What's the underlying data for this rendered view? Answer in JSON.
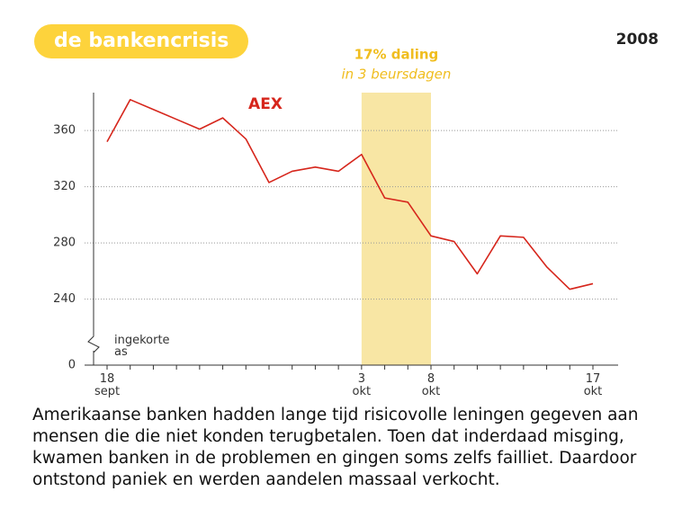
{
  "chart_data": {
    "type": "line",
    "title": "de bankencrisis",
    "year": "2008",
    "categories": [
      "18\nsept",
      null,
      null,
      null,
      null,
      null,
      null,
      null,
      null,
      null,
      null,
      "3\nokt",
      null,
      null,
      "8\nokt",
      null,
      null,
      null,
      null,
      null,
      null,
      "17\nokt"
    ],
    "series": [
      {
        "name": "AEX",
        "color": "#d6261c",
        "values": [
          352,
          382,
          375,
          368,
          361,
          369,
          354,
          323,
          331,
          334,
          331,
          343,
          312,
          309,
          285,
          281,
          258,
          285,
          284,
          263,
          247,
          251
        ]
      }
    ],
    "ylim": [
      193,
      387
    ],
    "yticks": [
      0,
      240,
      280,
      320,
      360
    ],
    "axis_break": true,
    "axis_break_label": "ingekorte\nas",
    "grid": true,
    "highlight_range": [
      11,
      14
    ],
    "highlight_color": "#f8e6a4",
    "highlight_title": "17% daling",
    "highlight_subtitle": "in 3 beursdagen",
    "caption": [
      "Amerikaanse banken hadden lange tijd risicovolle leningen gegeven aan",
      "mensen die die niet konden terugbetalen. Toen dat inderdaad misging,",
      "kwamen banken in de problemen en gingen soms zelfs failliet. Daardoor",
      "ontstond paniek en werden aandelen massaal verkocht."
    ]
  }
}
